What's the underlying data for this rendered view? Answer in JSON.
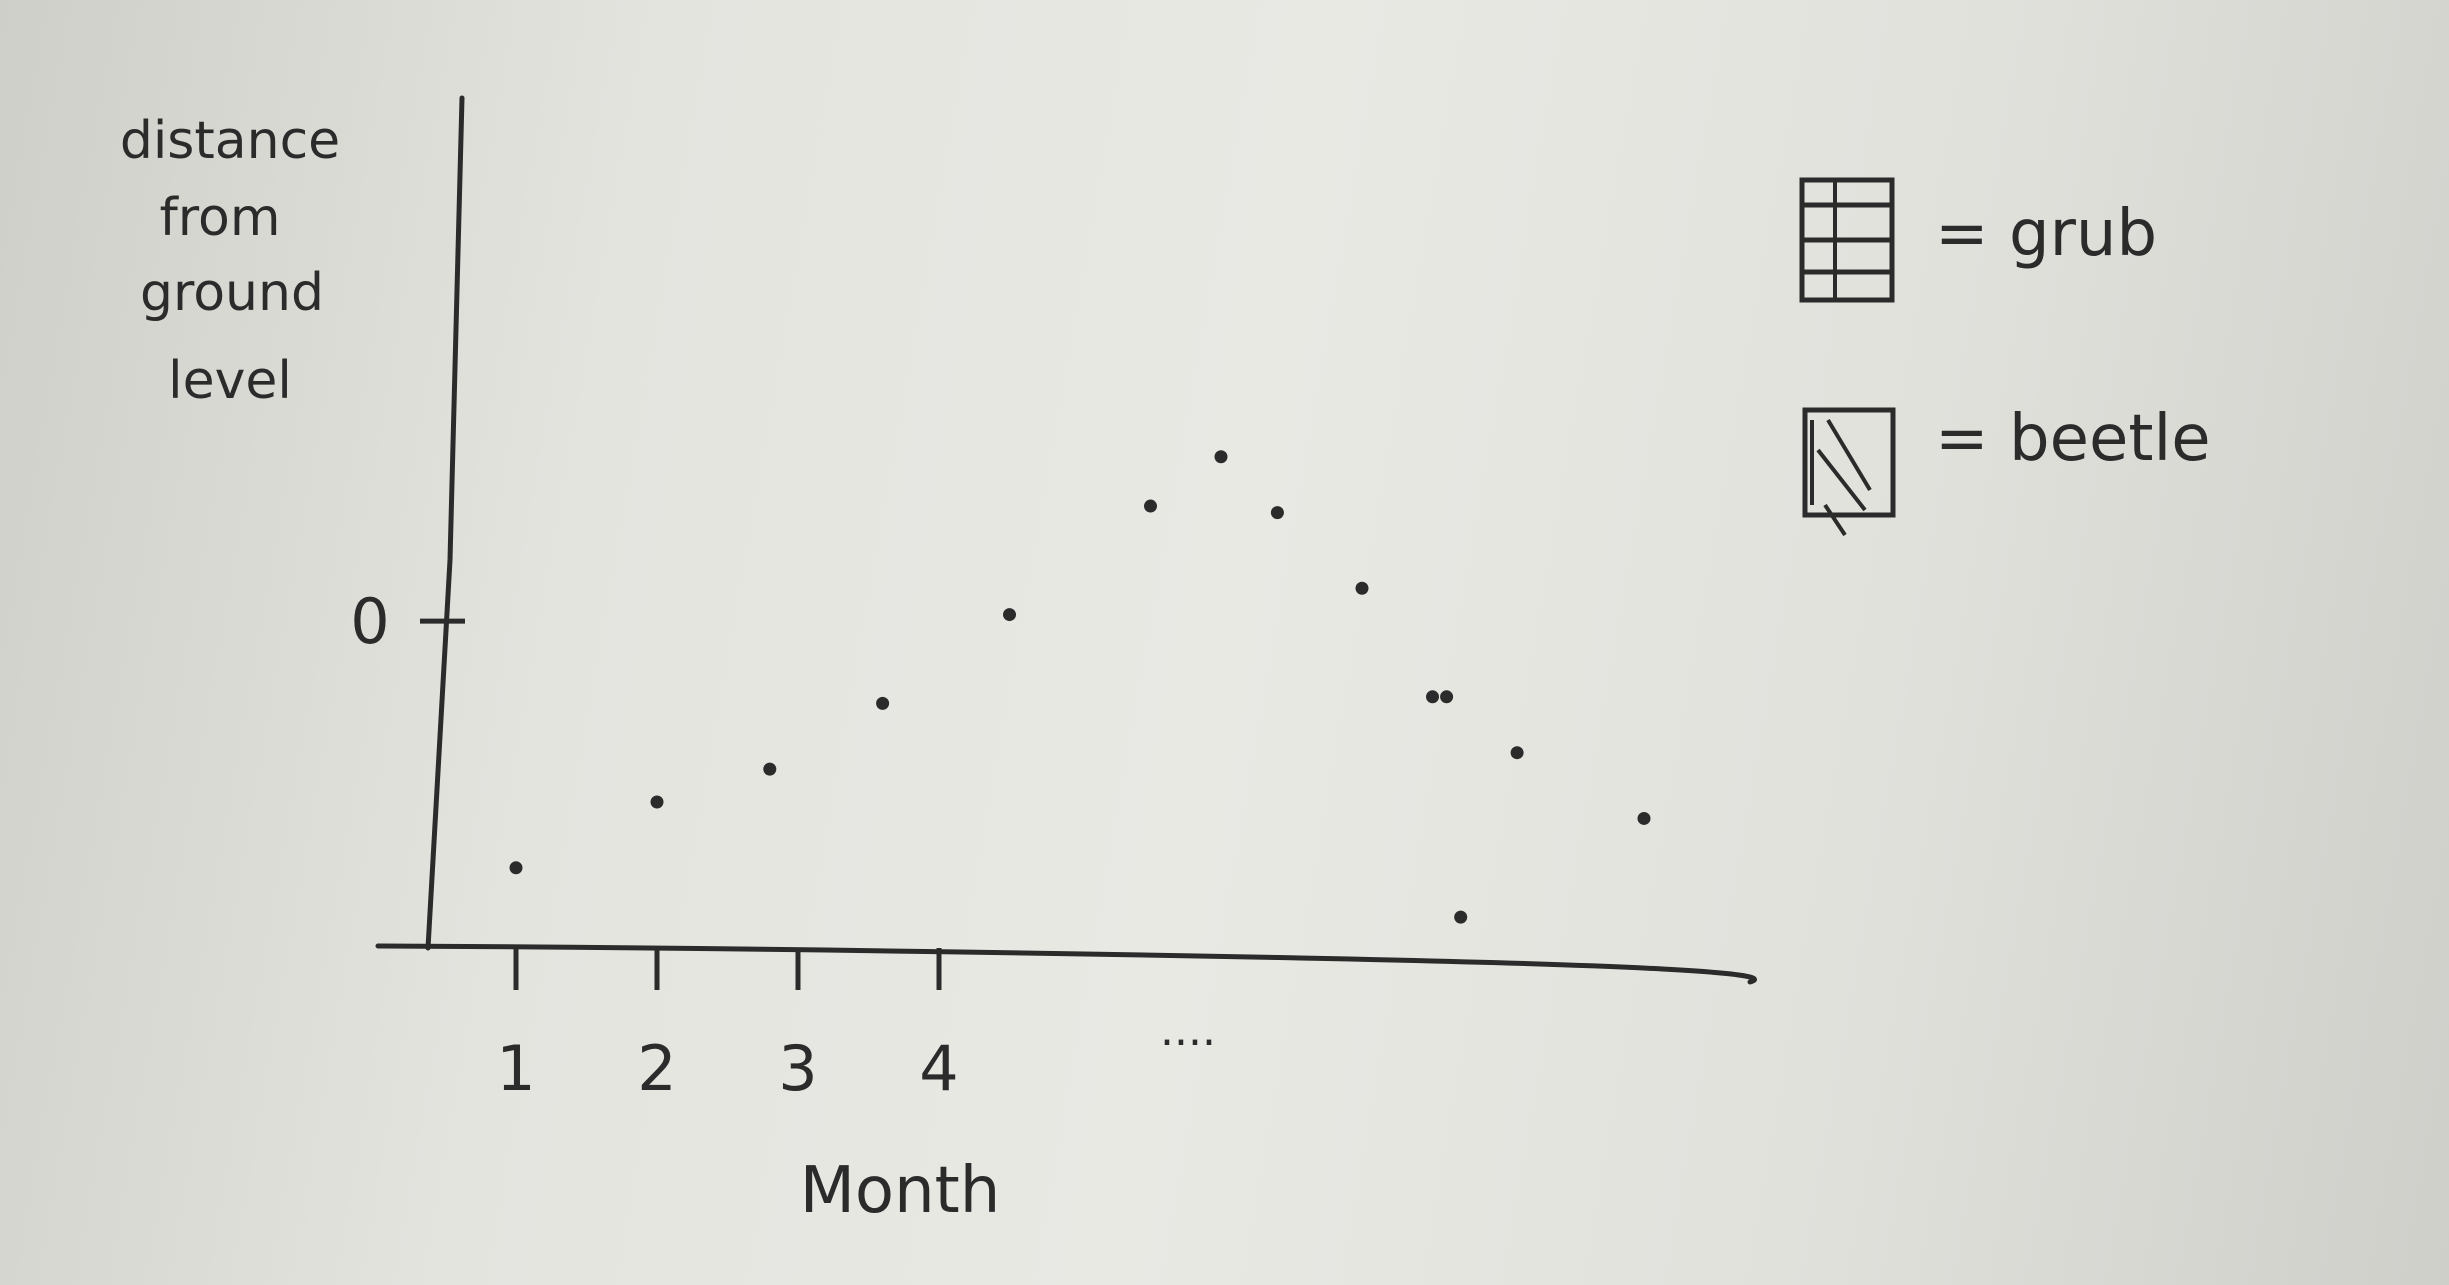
{
  "chart_data": {
    "type": "scatter",
    "title": "",
    "xlabel": "Month",
    "ylabel": [
      "distance",
      "from",
      "ground",
      "level"
    ],
    "x_ticks": [
      {
        "value": 1,
        "label": "1"
      },
      {
        "value": 2,
        "label": "2"
      },
      {
        "value": 3,
        "label": "3"
      },
      {
        "value": 4,
        "label": "4"
      }
    ],
    "x_ellipsis": "....",
    "y_ticks": [
      {
        "value": 0,
        "label": "0"
      }
    ],
    "xlim": [
      0,
      10
    ],
    "ylim": [
      -1,
      1.6
    ],
    "grid": false,
    "legend_position": "top-right",
    "legend": [
      {
        "symbol": "grub-box",
        "label": "= grub"
      },
      {
        "symbol": "beetle-box",
        "label": "= beetle"
      }
    ],
    "series": [
      {
        "points": [
          {
            "x": 1.0,
            "y": -0.75
          },
          {
            "x": 2.0,
            "y": -0.55
          },
          {
            "x": 2.8,
            "y": -0.45
          },
          {
            "x": 3.6,
            "y": -0.25
          },
          {
            "x": 4.5,
            "y": 0.02
          },
          {
            "x": 5.5,
            "y": 0.35
          },
          {
            "x": 6.0,
            "y": 0.5
          },
          {
            "x": 6.4,
            "y": 0.33
          },
          {
            "x": 7.0,
            "y": 0.1
          },
          {
            "x": 7.5,
            "y": -0.23
          },
          {
            "x": 7.6,
            "y": -0.23
          },
          {
            "x": 8.1,
            "y": -0.4
          },
          {
            "x": 7.7,
            "y": -0.9
          },
          {
            "x": 9.0,
            "y": -0.6
          }
        ]
      }
    ]
  }
}
